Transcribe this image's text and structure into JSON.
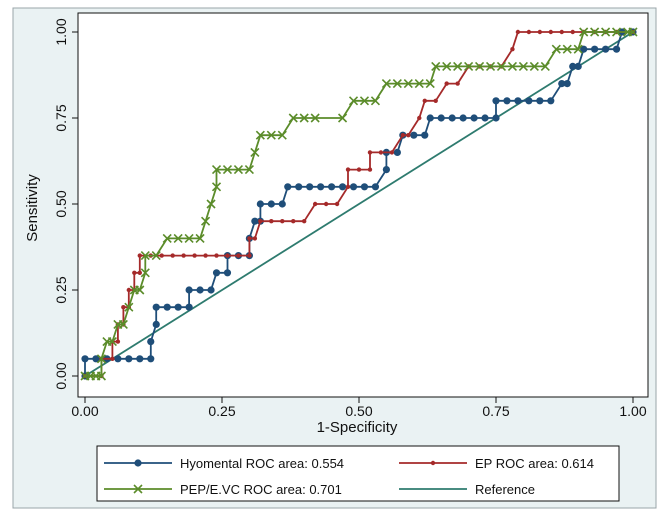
{
  "chart_data": {
    "type": "line",
    "xlabel": "1-Specificity",
    "ylabel": "Sensitivity",
    "xlim": [
      0,
      1
    ],
    "ylim": [
      0,
      1
    ],
    "x_ticks": [
      "0.00",
      "0.25",
      "0.50",
      "0.75",
      "1.00"
    ],
    "y_ticks": [
      "0.00",
      "0.25",
      "0.50",
      "0.75",
      "1.00"
    ],
    "grid": false,
    "legend_position": "bottom",
    "series": [
      {
        "name": "Hyomental ROC area: 0.554",
        "color": "#1f4e79",
        "marker": "circle",
        "points": [
          [
            0,
            0
          ],
          [
            0,
            0.05
          ],
          [
            0.02,
            0.05
          ],
          [
            0.04,
            0.05
          ],
          [
            0.06,
            0.05
          ],
          [
            0.08,
            0.05
          ],
          [
            0.1,
            0.05
          ],
          [
            0.12,
            0.05
          ],
          [
            0.12,
            0.1
          ],
          [
            0.13,
            0.15
          ],
          [
            0.13,
            0.2
          ],
          [
            0.15,
            0.2
          ],
          [
            0.17,
            0.2
          ],
          [
            0.19,
            0.2
          ],
          [
            0.19,
            0.25
          ],
          [
            0.21,
            0.25
          ],
          [
            0.23,
            0.25
          ],
          [
            0.24,
            0.3
          ],
          [
            0.26,
            0.3
          ],
          [
            0.26,
            0.35
          ],
          [
            0.28,
            0.35
          ],
          [
            0.3,
            0.35
          ],
          [
            0.3,
            0.4
          ],
          [
            0.31,
            0.45
          ],
          [
            0.32,
            0.45
          ],
          [
            0.32,
            0.5
          ],
          [
            0.34,
            0.5
          ],
          [
            0.36,
            0.5
          ],
          [
            0.37,
            0.55
          ],
          [
            0.39,
            0.55
          ],
          [
            0.41,
            0.55
          ],
          [
            0.43,
            0.55
          ],
          [
            0.45,
            0.55
          ],
          [
            0.47,
            0.55
          ],
          [
            0.49,
            0.55
          ],
          [
            0.51,
            0.55
          ],
          [
            0.53,
            0.55
          ],
          [
            0.55,
            0.6
          ],
          [
            0.55,
            0.65
          ],
          [
            0.57,
            0.65
          ],
          [
            0.58,
            0.7
          ],
          [
            0.6,
            0.7
          ],
          [
            0.62,
            0.7
          ],
          [
            0.63,
            0.75
          ],
          [
            0.65,
            0.75
          ],
          [
            0.67,
            0.75
          ],
          [
            0.69,
            0.75
          ],
          [
            0.71,
            0.75
          ],
          [
            0.73,
            0.75
          ],
          [
            0.75,
            0.75
          ],
          [
            0.75,
            0.8
          ],
          [
            0.77,
            0.8
          ],
          [
            0.79,
            0.8
          ],
          [
            0.81,
            0.8
          ],
          [
            0.83,
            0.8
          ],
          [
            0.85,
            0.8
          ],
          [
            0.87,
            0.85
          ],
          [
            0.88,
            0.85
          ],
          [
            0.89,
            0.9
          ],
          [
            0.9,
            0.9
          ],
          [
            0.91,
            0.95
          ],
          [
            0.93,
            0.95
          ],
          [
            0.95,
            0.95
          ],
          [
            0.97,
            0.95
          ],
          [
            0.98,
            1.0
          ],
          [
            1,
            1
          ]
        ]
      },
      {
        "name": "EP ROC area: 0.614",
        "color": "#a52a2a",
        "marker": "dot",
        "points": [
          [
            0,
            0
          ],
          [
            0.03,
            0
          ],
          [
            0.03,
            0.05
          ],
          [
            0.05,
            0.05
          ],
          [
            0.05,
            0.1
          ],
          [
            0.06,
            0.1
          ],
          [
            0.06,
            0.15
          ],
          [
            0.07,
            0.15
          ],
          [
            0.07,
            0.2
          ],
          [
            0.08,
            0.2
          ],
          [
            0.08,
            0.25
          ],
          [
            0.09,
            0.25
          ],
          [
            0.09,
            0.3
          ],
          [
            0.1,
            0.3
          ],
          [
            0.1,
            0.35
          ],
          [
            0.12,
            0.35
          ],
          [
            0.14,
            0.35
          ],
          [
            0.16,
            0.35
          ],
          [
            0.18,
            0.35
          ],
          [
            0.2,
            0.35
          ],
          [
            0.22,
            0.35
          ],
          [
            0.24,
            0.35
          ],
          [
            0.26,
            0.35
          ],
          [
            0.28,
            0.35
          ],
          [
            0.3,
            0.35
          ],
          [
            0.3,
            0.4
          ],
          [
            0.31,
            0.4
          ],
          [
            0.32,
            0.45
          ],
          [
            0.34,
            0.45
          ],
          [
            0.36,
            0.45
          ],
          [
            0.38,
            0.45
          ],
          [
            0.4,
            0.45
          ],
          [
            0.42,
            0.5
          ],
          [
            0.44,
            0.5
          ],
          [
            0.46,
            0.5
          ],
          [
            0.48,
            0.55
          ],
          [
            0.48,
            0.6
          ],
          [
            0.5,
            0.6
          ],
          [
            0.52,
            0.6
          ],
          [
            0.52,
            0.65
          ],
          [
            0.54,
            0.65
          ],
          [
            0.56,
            0.65
          ],
          [
            0.58,
            0.7
          ],
          [
            0.59,
            0.7
          ],
          [
            0.61,
            0.75
          ],
          [
            0.62,
            0.8
          ],
          [
            0.64,
            0.8
          ],
          [
            0.66,
            0.85
          ],
          [
            0.68,
            0.85
          ],
          [
            0.7,
            0.9
          ],
          [
            0.72,
            0.9
          ],
          [
            0.74,
            0.9
          ],
          [
            0.76,
            0.9
          ],
          [
            0.78,
            0.95
          ],
          [
            0.79,
            1.0
          ],
          [
            0.81,
            1.0
          ],
          [
            0.83,
            1.0
          ],
          [
            0.85,
            1.0
          ],
          [
            0.87,
            1.0
          ],
          [
            0.89,
            1.0
          ],
          [
            0.91,
            1.0
          ],
          [
            0.93,
            1.0
          ],
          [
            0.95,
            1.0
          ],
          [
            0.97,
            1.0
          ],
          [
            1,
            1
          ]
        ]
      },
      {
        "name": "PEP/E.VC ROC area: 0.701",
        "color": "#5b8c2a",
        "marker": "x",
        "points": [
          [
            0,
            0
          ],
          [
            0.01,
            0
          ],
          [
            0.02,
            0
          ],
          [
            0.03,
            0
          ],
          [
            0.03,
            0.05
          ],
          [
            0.04,
            0.1
          ],
          [
            0.05,
            0.1
          ],
          [
            0.06,
            0.15
          ],
          [
            0.07,
            0.15
          ],
          [
            0.08,
            0.2
          ],
          [
            0.09,
            0.25
          ],
          [
            0.1,
            0.25
          ],
          [
            0.11,
            0.3
          ],
          [
            0.11,
            0.35
          ],
          [
            0.13,
            0.35
          ],
          [
            0.15,
            0.4
          ],
          [
            0.17,
            0.4
          ],
          [
            0.19,
            0.4
          ],
          [
            0.21,
            0.4
          ],
          [
            0.22,
            0.45
          ],
          [
            0.23,
            0.5
          ],
          [
            0.24,
            0.55
          ],
          [
            0.24,
            0.6
          ],
          [
            0.26,
            0.6
          ],
          [
            0.28,
            0.6
          ],
          [
            0.3,
            0.6
          ],
          [
            0.31,
            0.65
          ],
          [
            0.32,
            0.7
          ],
          [
            0.34,
            0.7
          ],
          [
            0.36,
            0.7
          ],
          [
            0.38,
            0.75
          ],
          [
            0.4,
            0.75
          ],
          [
            0.42,
            0.75
          ],
          [
            0.47,
            0.75
          ],
          [
            0.49,
            0.8
          ],
          [
            0.51,
            0.8
          ],
          [
            0.53,
            0.8
          ],
          [
            0.55,
            0.85
          ],
          [
            0.57,
            0.85
          ],
          [
            0.59,
            0.85
          ],
          [
            0.61,
            0.85
          ],
          [
            0.63,
            0.85
          ],
          [
            0.64,
            0.9
          ],
          [
            0.66,
            0.9
          ],
          [
            0.68,
            0.9
          ],
          [
            0.7,
            0.9
          ],
          [
            0.72,
            0.9
          ],
          [
            0.74,
            0.9
          ],
          [
            0.76,
            0.9
          ],
          [
            0.78,
            0.9
          ],
          [
            0.8,
            0.9
          ],
          [
            0.82,
            0.9
          ],
          [
            0.84,
            0.9
          ],
          [
            0.86,
            0.95
          ],
          [
            0.88,
            0.95
          ],
          [
            0.9,
            0.95
          ],
          [
            0.91,
            1.0
          ],
          [
            0.93,
            1.0
          ],
          [
            0.95,
            1.0
          ],
          [
            0.97,
            1.0
          ],
          [
            0.99,
            1.0
          ],
          [
            1,
            1
          ]
        ]
      },
      {
        "name": "Reference",
        "color": "#2e7b6f",
        "marker": "none",
        "points": [
          [
            0,
            0
          ],
          [
            1,
            1
          ]
        ]
      }
    ]
  }
}
